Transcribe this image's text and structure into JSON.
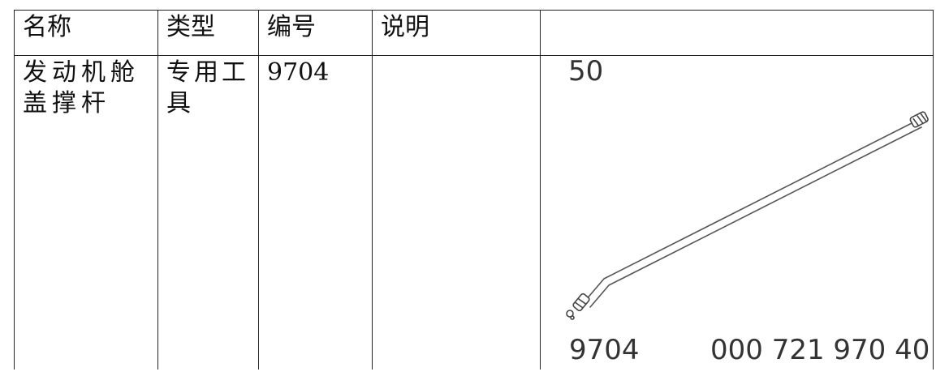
{
  "table": {
    "headers": [
      "名称",
      "类型",
      "编号",
      "说明",
      ""
    ],
    "rows": [
      {
        "name": "发动机舱盖撑杆",
        "type": "专用工具",
        "number": "9704",
        "description": ""
      }
    ]
  },
  "illustration": {
    "subject": "hood-support-rod",
    "quantity_label": "50",
    "tool_number": "9704",
    "part_number": "000 721 970 40"
  }
}
